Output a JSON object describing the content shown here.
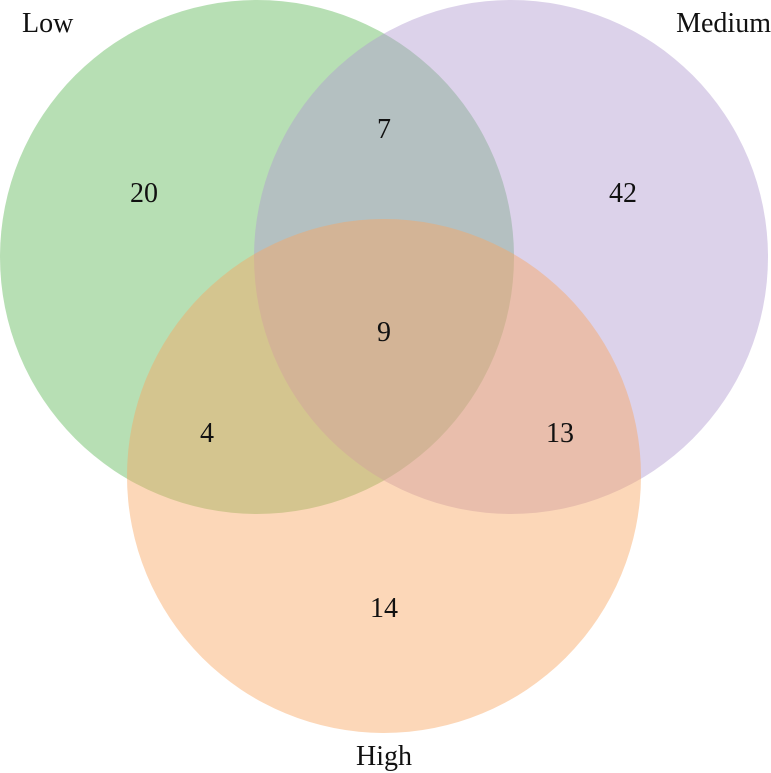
{
  "sets": [
    {
      "key": "low",
      "label": "Low",
      "color": "#7cc576"
    },
    {
      "key": "medium",
      "label": "Medium",
      "color": "#b19cd0"
    },
    {
      "key": "high",
      "label": "High",
      "color": "#f8a662"
    }
  ],
  "regions": {
    "low_only": "20",
    "medium_only": "42",
    "high_only": "14",
    "low_medium": "7",
    "low_high": "4",
    "medium_high": "13",
    "low_medium_high": "9"
  }
}
